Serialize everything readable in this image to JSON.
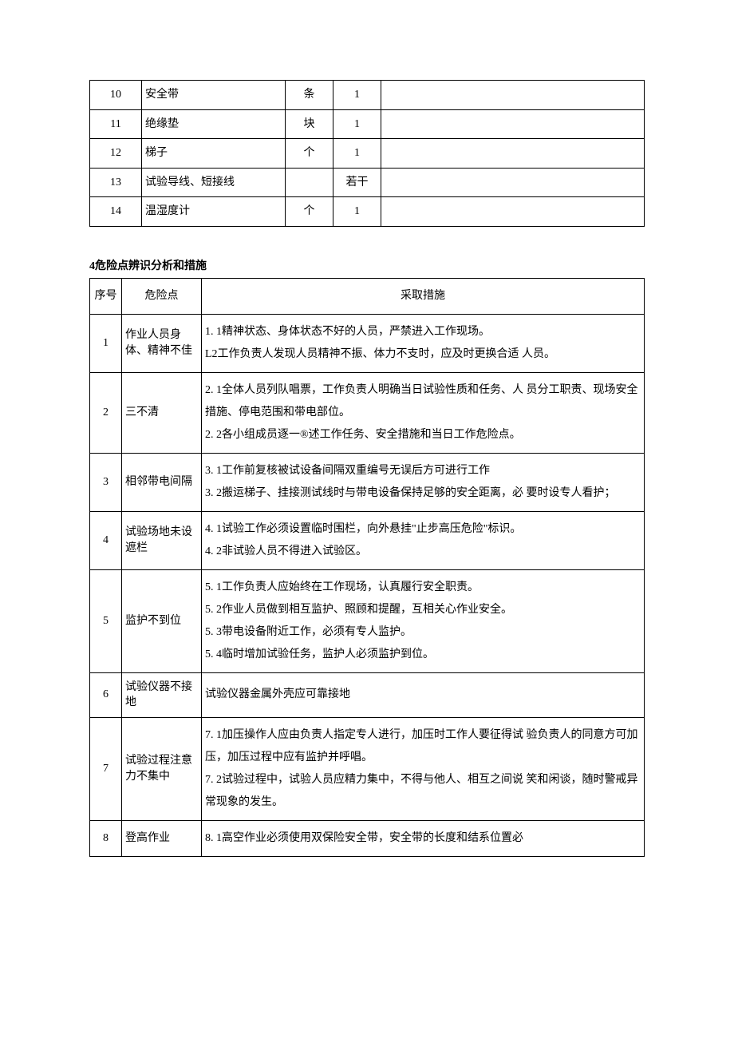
{
  "table1": {
    "rows": [
      {
        "no": "10",
        "name": "安全带",
        "unit": "条",
        "qty": "1",
        "remark": ""
      },
      {
        "no": "11",
        "name": "绝缘垫",
        "unit": "块",
        "qty": "1",
        "remark": ""
      },
      {
        "no": "12",
        "name": "梯子",
        "unit": "个",
        "qty": "1",
        "remark": ""
      },
      {
        "no": "13",
        "name": "试验导线、短接线",
        "unit": "",
        "qty": "若干",
        "remark": ""
      },
      {
        "no": "14",
        "name": "温湿度计",
        "unit": "个",
        "qty": "1",
        "remark": ""
      }
    ]
  },
  "section_title": "4危险点辨识分析和措施",
  "table2": {
    "header": {
      "no": "序号",
      "point": "危险点",
      "measure": "采取措施"
    },
    "rows": [
      {
        "no": "1",
        "point": "作业人员身 体、精神不佳",
        "measure": "1. 1精神状态、身体状态不好的人员，严禁进入工作现场。\nL2工作负责人发现人员精神不振、体力不支时，应及时更换合适 人员。"
      },
      {
        "no": "2",
        "point": "三不清",
        "measure": "2. 1全体人员列队唱票，工作负责人明确当日试验性质和任务、人 员分工职责、现场安全措施、停电范围和带电部位。\n2. 2各小组成员逐一®述工作任务、安全措施和当日工作危险点。"
      },
      {
        "no": "3",
        "point": "相邻带电间隔",
        "measure": "3. 1工作前复核被试设备间隔双重编号无误后方可进行工作\n3. 2搬运梯子、挂接测试线时与带电设备保持足够的安全距离，必 要时设专人看护；"
      },
      {
        "no": "4",
        "point": "试验场地未设遮栏",
        "measure": "4. 1试验工作必须设置临时围栏，向外悬挂\"止步高压危险\"标识。\n4. 2非试验人员不得进入试验区。"
      },
      {
        "no": "5",
        "point": "监护不到位",
        "measure": "5. 1工作负责人应始终在工作现场，认真履行安全职责。\n5. 2作业人员做到相互监护、照顾和提醒，互相关心作业安全。\n5. 3带电设备附近工作，必须有专人监护。\n5. 4临时增加试验任务，监护人必须监护到位。"
      },
      {
        "no": "6",
        "point": "试验仪器不接地",
        "measure": "试验仪器金属外壳应可靠接地"
      },
      {
        "no": "7",
        "point": "试验过程注意力不集中",
        "measure": "7. 1加压操作人应由负责人指定专人进行，加压时工作人要征得试 验负责人的同意方可加压，加压过程中应有监护并呼唱。\n7. 2试验过程中，试验人员应精力集中，不得与他人、相互之间说 笑和闲谈，随时警戒异常现象的发生。"
      },
      {
        "no": "8",
        "point": "登高作业",
        "measure": "8. 1高空作业必须使用双保险安全带，安全带的长度和结系位置必"
      }
    ]
  }
}
